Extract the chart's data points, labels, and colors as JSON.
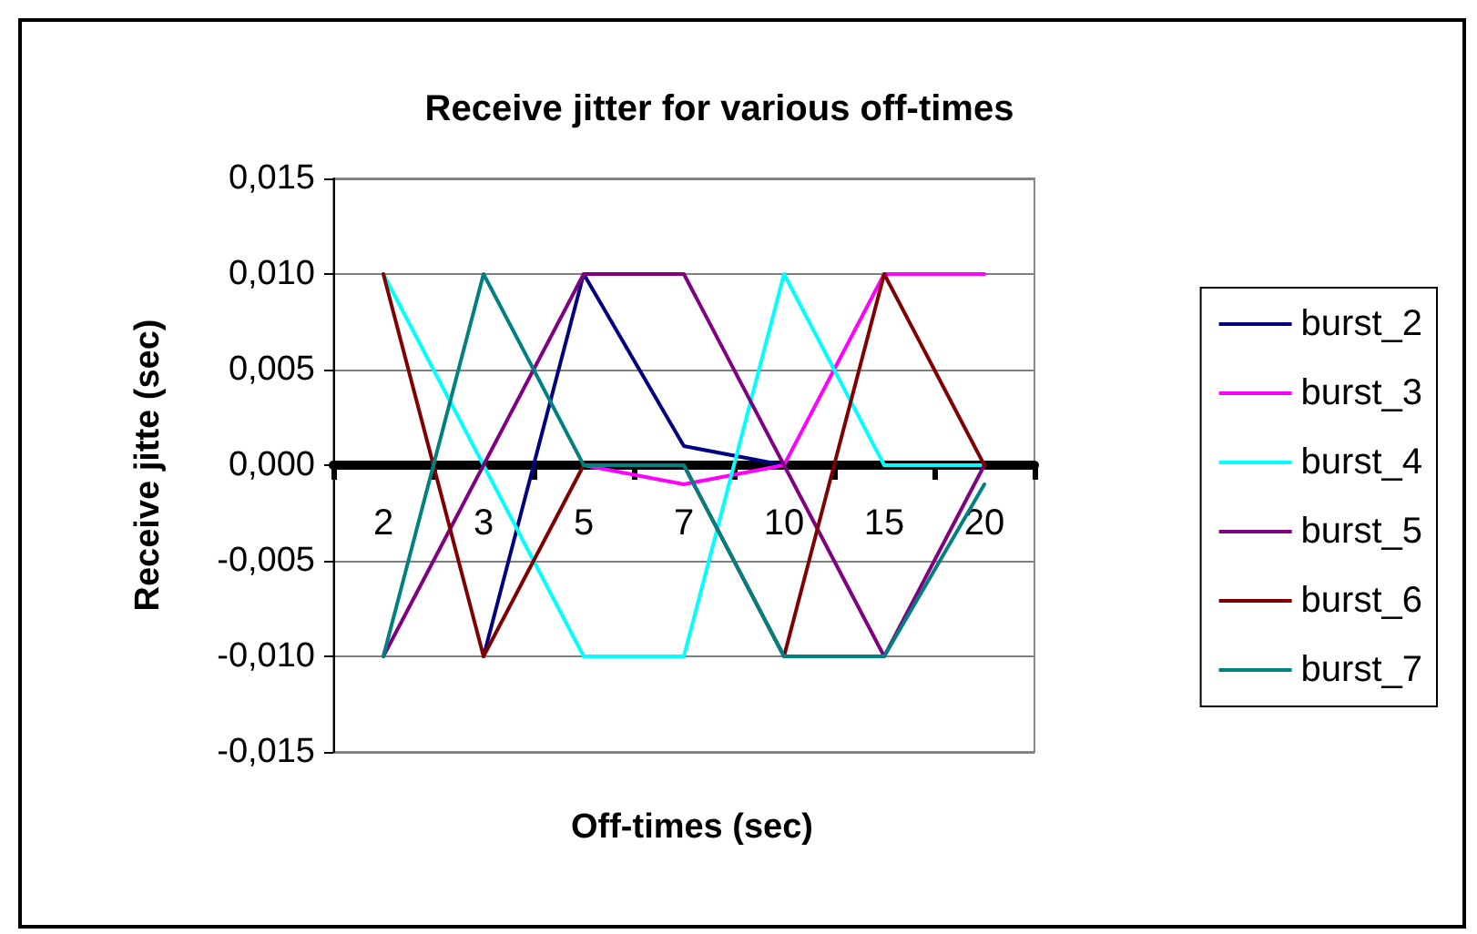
{
  "chart_data": {
    "type": "line",
    "title": "Receive jitter for various off-times",
    "xlabel": "Off-times (sec)",
    "ylabel": "Receive jitte (sec)",
    "categories": [
      "2",
      "3",
      "5",
      "7",
      "10",
      "15",
      "20"
    ],
    "series": [
      {
        "name": "burst_2",
        "color": "#000080",
        "values": [
          null,
          -0.01,
          0.01,
          0.001,
          0,
          null,
          null
        ]
      },
      {
        "name": "burst_3",
        "color": "#ff00ff",
        "values": [
          null,
          null,
          0,
          -0.001,
          0,
          0.01,
          0.01
        ]
      },
      {
        "name": "burst_4",
        "color": "#00ffff",
        "values": [
          0.01,
          0,
          -0.01,
          -0.01,
          0.01,
          0,
          0
        ]
      },
      {
        "name": "burst_5",
        "color": "#800080",
        "values": [
          -0.01,
          0,
          0.01,
          0.01,
          0,
          -0.01,
          0
        ]
      },
      {
        "name": "burst_6",
        "color": "#800000",
        "values": [
          0.01,
          -0.01,
          0,
          0,
          -0.01,
          0.01,
          0
        ]
      },
      {
        "name": "burst_7",
        "color": "#008080",
        "values": [
          -0.01,
          0.01,
          0,
          0,
          -0.01,
          -0.01,
          -0.001
        ]
      }
    ],
    "ylim": [
      -0.015,
      0.015
    ],
    "yticks": [
      {
        "value": -0.015,
        "label": "-0,015"
      },
      {
        "value": -0.01,
        "label": "-0,010"
      },
      {
        "value": -0.005,
        "label": "-0,005"
      },
      {
        "value": 0,
        "label": "0,000"
      },
      {
        "value": 0.005,
        "label": "0,005"
      },
      {
        "value": 0.01,
        "label": "0,010"
      },
      {
        "value": 0.015,
        "label": "0,015"
      }
    ],
    "grid": "y",
    "legend": "right",
    "marker": "none",
    "line_style": "solid"
  }
}
